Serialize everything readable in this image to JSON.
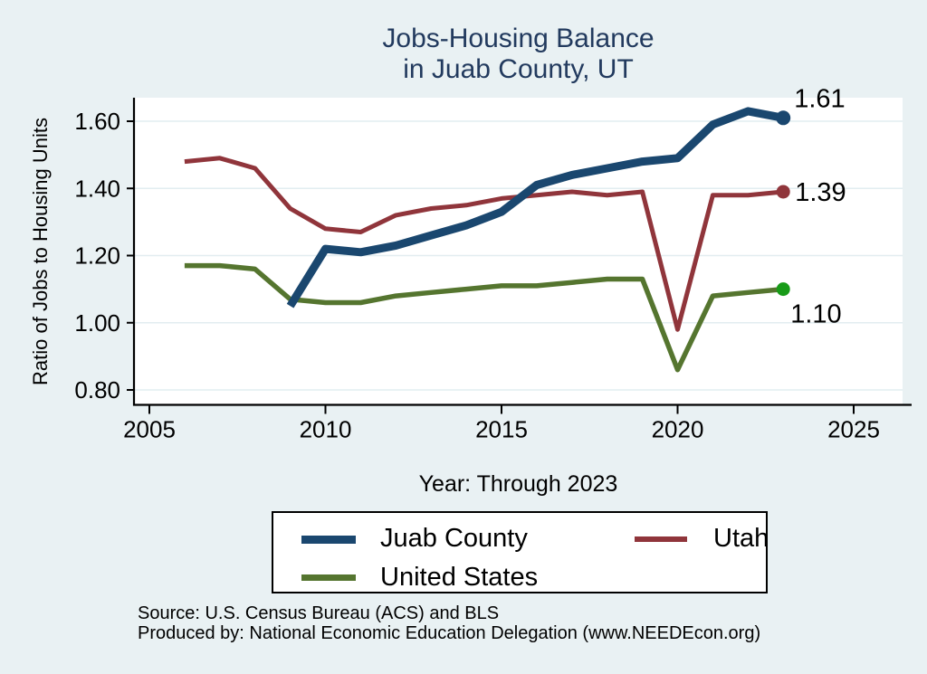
{
  "title": {
    "line1": "Jobs-Housing Balance",
    "line2": "in Juab County, UT"
  },
  "colors": {
    "page_bg": "#e9f1f3",
    "plot_bg": "#ffffff",
    "grid": "#e2edf0",
    "axis": "#000000",
    "title_text": "#223a5e",
    "navy": "#1a476f",
    "maroon": "#90353b",
    "olive": "#55752f",
    "bright_green_marker": "#189b18"
  },
  "legend": {
    "items": [
      {
        "label": "Juab County",
        "color": "#1a476f"
      },
      {
        "label": "Utah",
        "color": "#90353b"
      },
      {
        "label": "United States",
        "color": "#55752f"
      }
    ]
  },
  "footer": {
    "line1": "Source: U.S. Census Bureau (ACS) and BLS",
    "line2": "Produced by: National Economic Education Delegation (www.NEEDEcon.org)"
  },
  "chart_data": {
    "type": "line",
    "title": "Jobs-Housing Balance in Juab County, UT",
    "xlabel": "Year: Through 2023",
    "ylabel": "Ratio of Jobs to Housing Units",
    "grid": "horizontal",
    "legend_position": "bottom",
    "xlim": [
      2004.5,
      2026.4
    ],
    "ylim": [
      0.757,
      1.67
    ],
    "x_ticks": [
      2005,
      2010,
      2015,
      2020,
      2025
    ],
    "x_tick_labels": [
      "2005",
      "2010",
      "2015",
      "2020",
      "2025"
    ],
    "y_ticks": [
      1.6,
      1.4,
      1.2,
      1.0,
      0.8
    ],
    "y_tick_labels": [
      "1.60",
      "1.40",
      "1.20",
      "1.00",
      "0.80"
    ],
    "x": [
      2006,
      2007,
      2008,
      2009,
      2010,
      2011,
      2012,
      2013,
      2014,
      2015,
      2016,
      2017,
      2018,
      2019,
      2020,
      2021,
      2022,
      2023
    ],
    "series": [
      {
        "name": "Utah",
        "color": "#90353b",
        "marker_color": "#90353b",
        "line_width": 5,
        "end_label": "1.39",
        "values": [
          1.48,
          1.49,
          1.46,
          1.34,
          1.28,
          1.27,
          1.32,
          1.34,
          1.35,
          1.37,
          1.38,
          1.39,
          1.38,
          1.39,
          0.98,
          1.38,
          1.38,
          1.39
        ]
      },
      {
        "name": "United States",
        "color": "#55752f",
        "marker_color": "#189b18",
        "line_width": 5.5,
        "end_label": "1.10",
        "values": [
          1.17,
          1.17,
          1.16,
          1.07,
          1.06,
          1.06,
          1.08,
          1.09,
          1.1,
          1.11,
          1.11,
          1.12,
          1.13,
          1.13,
          0.86,
          1.08,
          1.09,
          1.1
        ]
      },
      {
        "name": "Juab County",
        "color": "#1a476f",
        "marker_color": "#1a476f",
        "line_width": 9,
        "end_label": "1.61",
        "values": [
          null,
          null,
          null,
          1.05,
          1.22,
          1.21,
          1.23,
          1.26,
          1.29,
          1.33,
          1.41,
          1.44,
          1.46,
          1.48,
          1.49,
          1.59,
          1.63,
          1.61
        ]
      }
    ]
  }
}
